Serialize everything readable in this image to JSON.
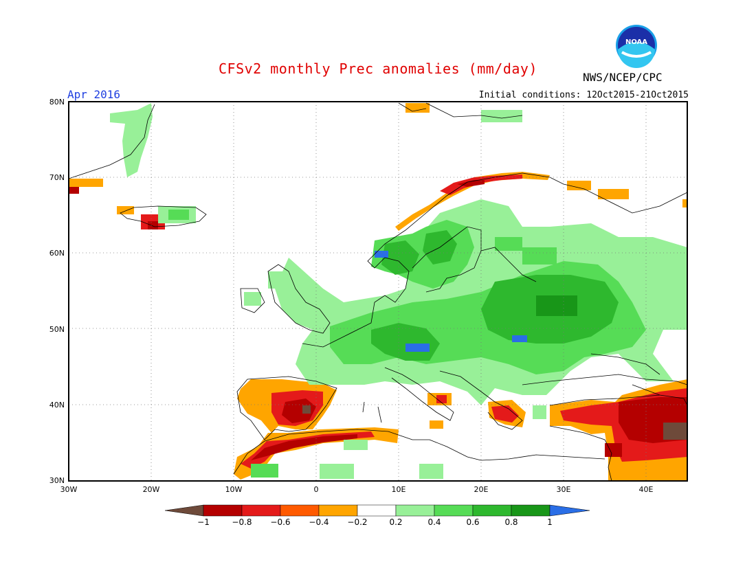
{
  "title": "CFSv2 monthly Prec anomalies (mm/day)",
  "agency": "NWS/NCEP/CPC",
  "logo_text": "NOAA",
  "valid_month": "Apr 2016",
  "initial_conditions": "Initial conditions: 12Oct2015-21Oct2015",
  "map": {
    "lon_range": [
      -30,
      45
    ],
    "lat_range": [
      30,
      80
    ],
    "lat_labels": [
      "30N",
      "40N",
      "50N",
      "60N",
      "70N",
      "80N"
    ],
    "lon_labels": [
      "30W",
      "20W",
      "10W",
      "0",
      "10E",
      "20E",
      "30E",
      "40E"
    ],
    "grid": "dotted every 10 degrees"
  },
  "colorbar": {
    "labels": [
      "-1",
      "-0.8",
      "-0.6",
      "-0.4",
      "-0.2",
      "0.2",
      "0.4",
      "0.6",
      "0.8",
      "1"
    ],
    "colors": [
      "#6e4a3a",
      "#b40000",
      "#e41a1a",
      "#ff5a00",
      "#ffa500",
      "#ffffff",
      "#98f098",
      "#56dc56",
      "#2eb82e",
      "#189618",
      "#2a6ee6"
    ]
  },
  "anomaly_regions": [
    {
      "name": "iberia-dry",
      "level": -0.6
    },
    {
      "name": "north-africa-dry",
      "level": -0.7
    },
    {
      "name": "middle-east-dry",
      "level": -0.9
    },
    {
      "name": "scandinavia-coast-dry",
      "level": -0.5
    },
    {
      "name": "central-europe-wet",
      "level": 0.6
    },
    {
      "name": "alps-wet",
      "level": 1.0
    },
    {
      "name": "carpathians-wet",
      "level": 1.0
    },
    {
      "name": "russia-wet",
      "level": 0.4
    },
    {
      "name": "southern-norway-wet",
      "level": 1.0
    }
  ]
}
